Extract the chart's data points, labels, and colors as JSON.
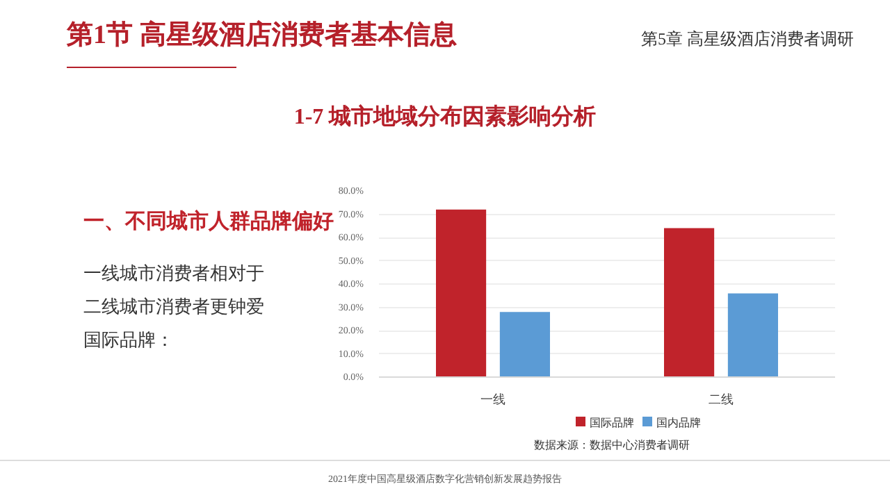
{
  "chart_data": {
    "type": "bar",
    "title": "1-7 城市地域分布因素影响分析",
    "categories": [
      "一线",
      "二线"
    ],
    "series": [
      {
        "name": "国际品牌",
        "color": "#c0232b",
        "values": [
          72,
          64
        ]
      },
      {
        "name": "国内品牌",
        "color": "#5b9bd5",
        "values": [
          28,
          36
        ]
      }
    ],
    "ylim": [
      0,
      80
    ],
    "yticks": [
      {
        "value": 0,
        "label": "0.0%"
      },
      {
        "value": 10,
        "label": "10.0%"
      },
      {
        "value": 20,
        "label": "20.0%"
      },
      {
        "value": 30,
        "label": "30.0%"
      },
      {
        "value": 40,
        "label": "40.0%"
      },
      {
        "value": 50,
        "label": "50.0%"
      },
      {
        "value": 60,
        "label": "60.0%"
      },
      {
        "value": 70,
        "label": "70.0%"
      },
      {
        "value": 80,
        "label": "80.0%"
      }
    ],
    "grid": "y",
    "legend": "bottom",
    "annotations": [
      "第1节 高星级酒店消费者基本信息",
      "第5章 高星级酒店消费者调研",
      "一、不同城市人群品牌偏好",
      "一线城市消费者相对于二线城市消费者更钟爱国际品牌：",
      "数据来源：数据中心消费者调研",
      "2021年度中国高星级酒店数字化营销创新发展趋势报告"
    ]
  }
}
